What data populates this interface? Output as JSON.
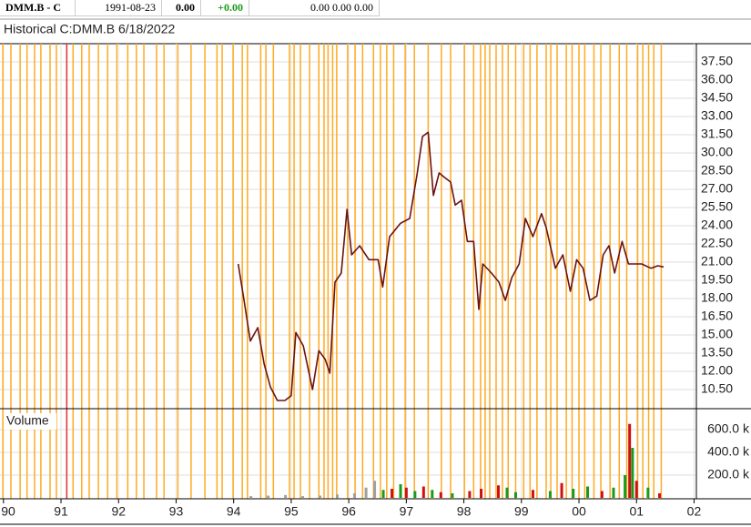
{
  "quote_bar": {
    "symbol": "DMM.B - C",
    "date": "1991-08-23",
    "last": "0.00",
    "change": "+0.00",
    "ohlc": "0.00 0.00 0.00"
  },
  "chart_data": {
    "type": "line",
    "title": "Historical C:DMM.B 6/18/2022",
    "volume_label": "Volume",
    "xlim": [
      1989.94,
      2002.04
    ],
    "xticks": [
      {
        "value": 1990,
        "label": "90"
      },
      {
        "value": 1991,
        "label": "91"
      },
      {
        "value": 1992,
        "label": "92"
      },
      {
        "value": 1993,
        "label": "93"
      },
      {
        "value": 1994,
        "label": "94"
      },
      {
        "value": 1995,
        "label": "95"
      },
      {
        "value": 1996,
        "label": "96"
      },
      {
        "value": 1997,
        "label": "97"
      },
      {
        "value": 1998,
        "label": "98"
      },
      {
        "value": 1999,
        "label": "99"
      },
      {
        "value": 2000,
        "label": "00"
      },
      {
        "value": 2001,
        "label": "01"
      },
      {
        "value": 2002,
        "label": "02"
      }
    ],
    "ylim": [
      8.925,
      39
    ],
    "yticks": [
      {
        "value": 10.5,
        "label": "10.50"
      },
      {
        "value": 12,
        "label": "12.00"
      },
      {
        "value": 13.5,
        "label": "13.50"
      },
      {
        "value": 15,
        "label": "15.00"
      },
      {
        "value": 16.5,
        "label": "16.50"
      },
      {
        "value": 18,
        "label": "18.00"
      },
      {
        "value": 19.5,
        "label": "19.50"
      },
      {
        "value": 21,
        "label": "21.00"
      },
      {
        "value": 22.5,
        "label": "22.50"
      },
      {
        "value": 24,
        "label": "24.00"
      },
      {
        "value": 25.5,
        "label": "25.50"
      },
      {
        "value": 27,
        "label": "27.00"
      },
      {
        "value": 28.5,
        "label": "28.50"
      },
      {
        "value": 30,
        "label": "30.00"
      },
      {
        "value": 31.5,
        "label": "31.50"
      },
      {
        "value": 33,
        "label": "33.00"
      },
      {
        "value": 34.5,
        "label": "34.50"
      },
      {
        "value": 36,
        "label": "36.00"
      },
      {
        "value": 37.5,
        "label": "37.50"
      }
    ],
    "y2lim": [
      0,
      784000
    ],
    "y2ticks": [
      {
        "value": 200000,
        "label": "200.0 k"
      },
      {
        "value": 400000,
        "label": "400.0 k"
      },
      {
        "value": 600000,
        "label": "600.0 k"
      }
    ],
    "grid": true,
    "price": {
      "color": "#6b1212",
      "x": [
        1994.08,
        1994.18,
        1994.29,
        1994.42,
        1994.53,
        1994.64,
        1994.76,
        1994.89,
        1995.0,
        1995.08,
        1995.21,
        1995.37,
        1995.48,
        1995.59,
        1995.67,
        1995.76,
        1995.87,
        1995.97,
        1996.05,
        1996.19,
        1996.35,
        1996.51,
        1996.59,
        1996.71,
        1996.9,
        1997.06,
        1997.19,
        1997.28,
        1997.38,
        1997.47,
        1997.57,
        1997.66,
        1997.77,
        1997.85,
        1997.96,
        1998.06,
        1998.17,
        1998.26,
        1998.33,
        1998.48,
        1998.61,
        1998.72,
        1998.83,
        1998.96,
        1999.07,
        1999.2,
        1999.35,
        1999.43,
        1999.59,
        1999.72,
        1999.85,
        1999.96,
        2000.07,
        2000.19,
        2000.31,
        2000.42,
        2000.52,
        2000.62,
        2000.75,
        2000.86,
        2000.97,
        2001.09,
        2001.25,
        2001.37,
        2001.47
      ],
      "values": [
        20.85,
        17.85,
        14.5,
        15.6,
        12.6,
        10.7,
        9.6,
        9.6,
        10.0,
        15.2,
        14.1,
        10.5,
        13.7,
        13.0,
        11.85,
        19.35,
        20.1,
        25.35,
        21.6,
        22.35,
        21.2,
        21.2,
        18.95,
        23.1,
        24.2,
        24.6,
        28.35,
        31.35,
        31.7,
        26.5,
        28.35,
        28.0,
        27.6,
        25.7,
        26.1,
        22.7,
        22.7,
        17.1,
        20.85,
        20.1,
        19.35,
        17.85,
        19.7,
        20.85,
        24.6,
        23.1,
        25.0,
        23.85,
        20.5,
        21.6,
        18.6,
        21.2,
        20.5,
        17.85,
        18.2,
        21.6,
        22.35,
        20.1,
        22.7,
        20.85,
        20.85,
        20.85,
        20.5,
        20.7,
        20.6
      ]
    },
    "volume": {
      "x": [
        1994.3,
        1994.6,
        1994.9,
        1995.2,
        1995.5,
        1995.8,
        1996.1,
        1996.3,
        1996.45,
        1996.6,
        1996.75,
        1996.9,
        1997.0,
        1997.15,
        1997.3,
        1997.45,
        1997.6,
        1997.8,
        1998.1,
        1998.3,
        1998.6,
        1998.75,
        1998.9,
        1999.2,
        1999.5,
        1999.7,
        1999.9,
        2000.15,
        2000.4,
        2000.6,
        2000.8,
        2000.88,
        2000.93,
        2001.0,
        2001.2,
        2001.4
      ],
      "values": [
        15000,
        20000,
        25000,
        15000,
        20000,
        30000,
        40000,
        90000,
        150000,
        70000,
        80000,
        120000,
        90000,
        60000,
        100000,
        70000,
        50000,
        40000,
        60000,
        80000,
        110000,
        90000,
        50000,
        70000,
        60000,
        130000,
        80000,
        100000,
        60000,
        90000,
        200000,
        650000,
        440000,
        150000,
        90000,
        40000
      ],
      "colors": [
        "#a0a0a0",
        "#a0a0a0",
        "#a0a0a0",
        "#a0a0a0",
        "#a0a0a0",
        "#a0a0a0",
        "#a0a0a0",
        "#a0a0a0",
        "#a0a0a0",
        "#1a9a1a",
        "#d01010",
        "#1a9a1a",
        "#d01010",
        "#1a9a1a",
        "#d01010",
        "#1a9a1a",
        "#d01010",
        "#1a9a1a",
        "#d01010",
        "#d01010",
        "#d01010",
        "#1a9a1a",
        "#1a9a1a",
        "#d01010",
        "#1a9a1a",
        "#d01010",
        "#1a9a1a",
        "#1a9a1a",
        "#d01010",
        "#1a9a1a",
        "#1a9a1a",
        "#d01010",
        "#1a9a1a",
        "#d01010",
        "#1a9a1a",
        "#d01010"
      ]
    },
    "event_color": "#ffaa22",
    "events": [
      1989.99,
      1990.13,
      1990.29,
      1990.41,
      1990.54,
      1990.65,
      1990.81,
      1990.92,
      1991.21,
      1991.36,
      1991.49,
      1991.65,
      1991.81,
      1991.97,
      1992.16,
      1992.31,
      1992.44,
      1992.66,
      1992.79,
      1993.03,
      1993.26,
      1993.5,
      1993.71,
      1993.8,
      1993.99,
      1994.15,
      1994.24,
      1994.47,
      1994.56,
      1994.69,
      1994.97,
      1995.05,
      1995.16,
      1995.32,
      1995.48,
      1995.57,
      1995.64,
      1995.72,
      1995.79,
      1995.98,
      1996.11,
      1996.24,
      1996.43,
      1996.55,
      1996.66,
      1996.78,
      1996.98,
      1997.14,
      1997.38,
      1997.61,
      1997.77,
      1998.01,
      1998.17,
      1998.29,
      1998.37,
      1998.45,
      1998.56,
      1998.67,
      1998.77,
      1998.9,
      1999.04,
      1999.15,
      1999.27,
      1999.43,
      1999.51,
      1999.62,
      1999.78,
      1999.88,
      2000.0,
      2000.1,
      2000.26,
      2000.38,
      2000.54,
      2000.7,
      2000.83,
      2001.02,
      2001.11,
      2001.21,
      2001.3,
      2001.43
    ],
    "highlight_color": "#e03030",
    "highlight_events": [
      1991.1
    ]
  }
}
